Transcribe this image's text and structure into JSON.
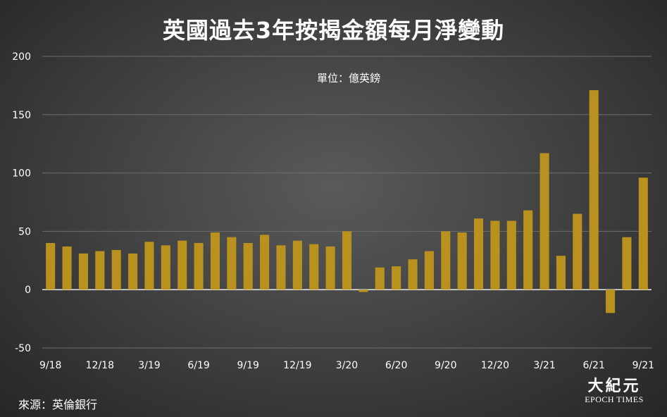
{
  "chart_data": {
    "type": "bar",
    "title": "英國過去3年按揭金額每月淨變動",
    "unit_label": "單位：億英鎊",
    "source": "來源：英倫銀行",
    "ylim": [
      -50,
      200
    ],
    "yticks": [
      -50,
      0,
      50,
      100,
      150,
      200
    ],
    "grid": true,
    "bar_color": "#b8911f",
    "categories": [
      "9/18",
      "10/18",
      "11/18",
      "12/18",
      "1/19",
      "2/19",
      "3/19",
      "4/19",
      "5/19",
      "6/19",
      "7/19",
      "8/19",
      "9/19",
      "10/19",
      "11/19",
      "12/19",
      "1/20",
      "2/20",
      "3/20",
      "4/20",
      "5/20",
      "6/20",
      "7/20",
      "8/20",
      "9/20",
      "10/20",
      "11/20",
      "12/20",
      "1/21",
      "2/21",
      "3/21",
      "4/21",
      "5/21",
      "6/21",
      "7/21",
      "8/21",
      "9/21"
    ],
    "xtick_labels": [
      "9/18",
      "12/18",
      "3/19",
      "6/19",
      "9/19",
      "12/19",
      "3/20",
      "6/20",
      "9/20",
      "12/20",
      "3/21",
      "6/21",
      "9/21"
    ],
    "values": [
      40,
      37,
      31,
      33,
      34,
      31,
      41,
      38,
      42,
      40,
      49,
      45,
      40,
      47,
      38,
      42,
      39,
      37,
      50,
      -2,
      19,
      20,
      26,
      33,
      50,
      49,
      61,
      59,
      59,
      68,
      117,
      29,
      65,
      171,
      -20,
      45,
      96
    ]
  },
  "logo": {
    "chinese": "大紀元",
    "english": "EPOCH TIMES"
  }
}
